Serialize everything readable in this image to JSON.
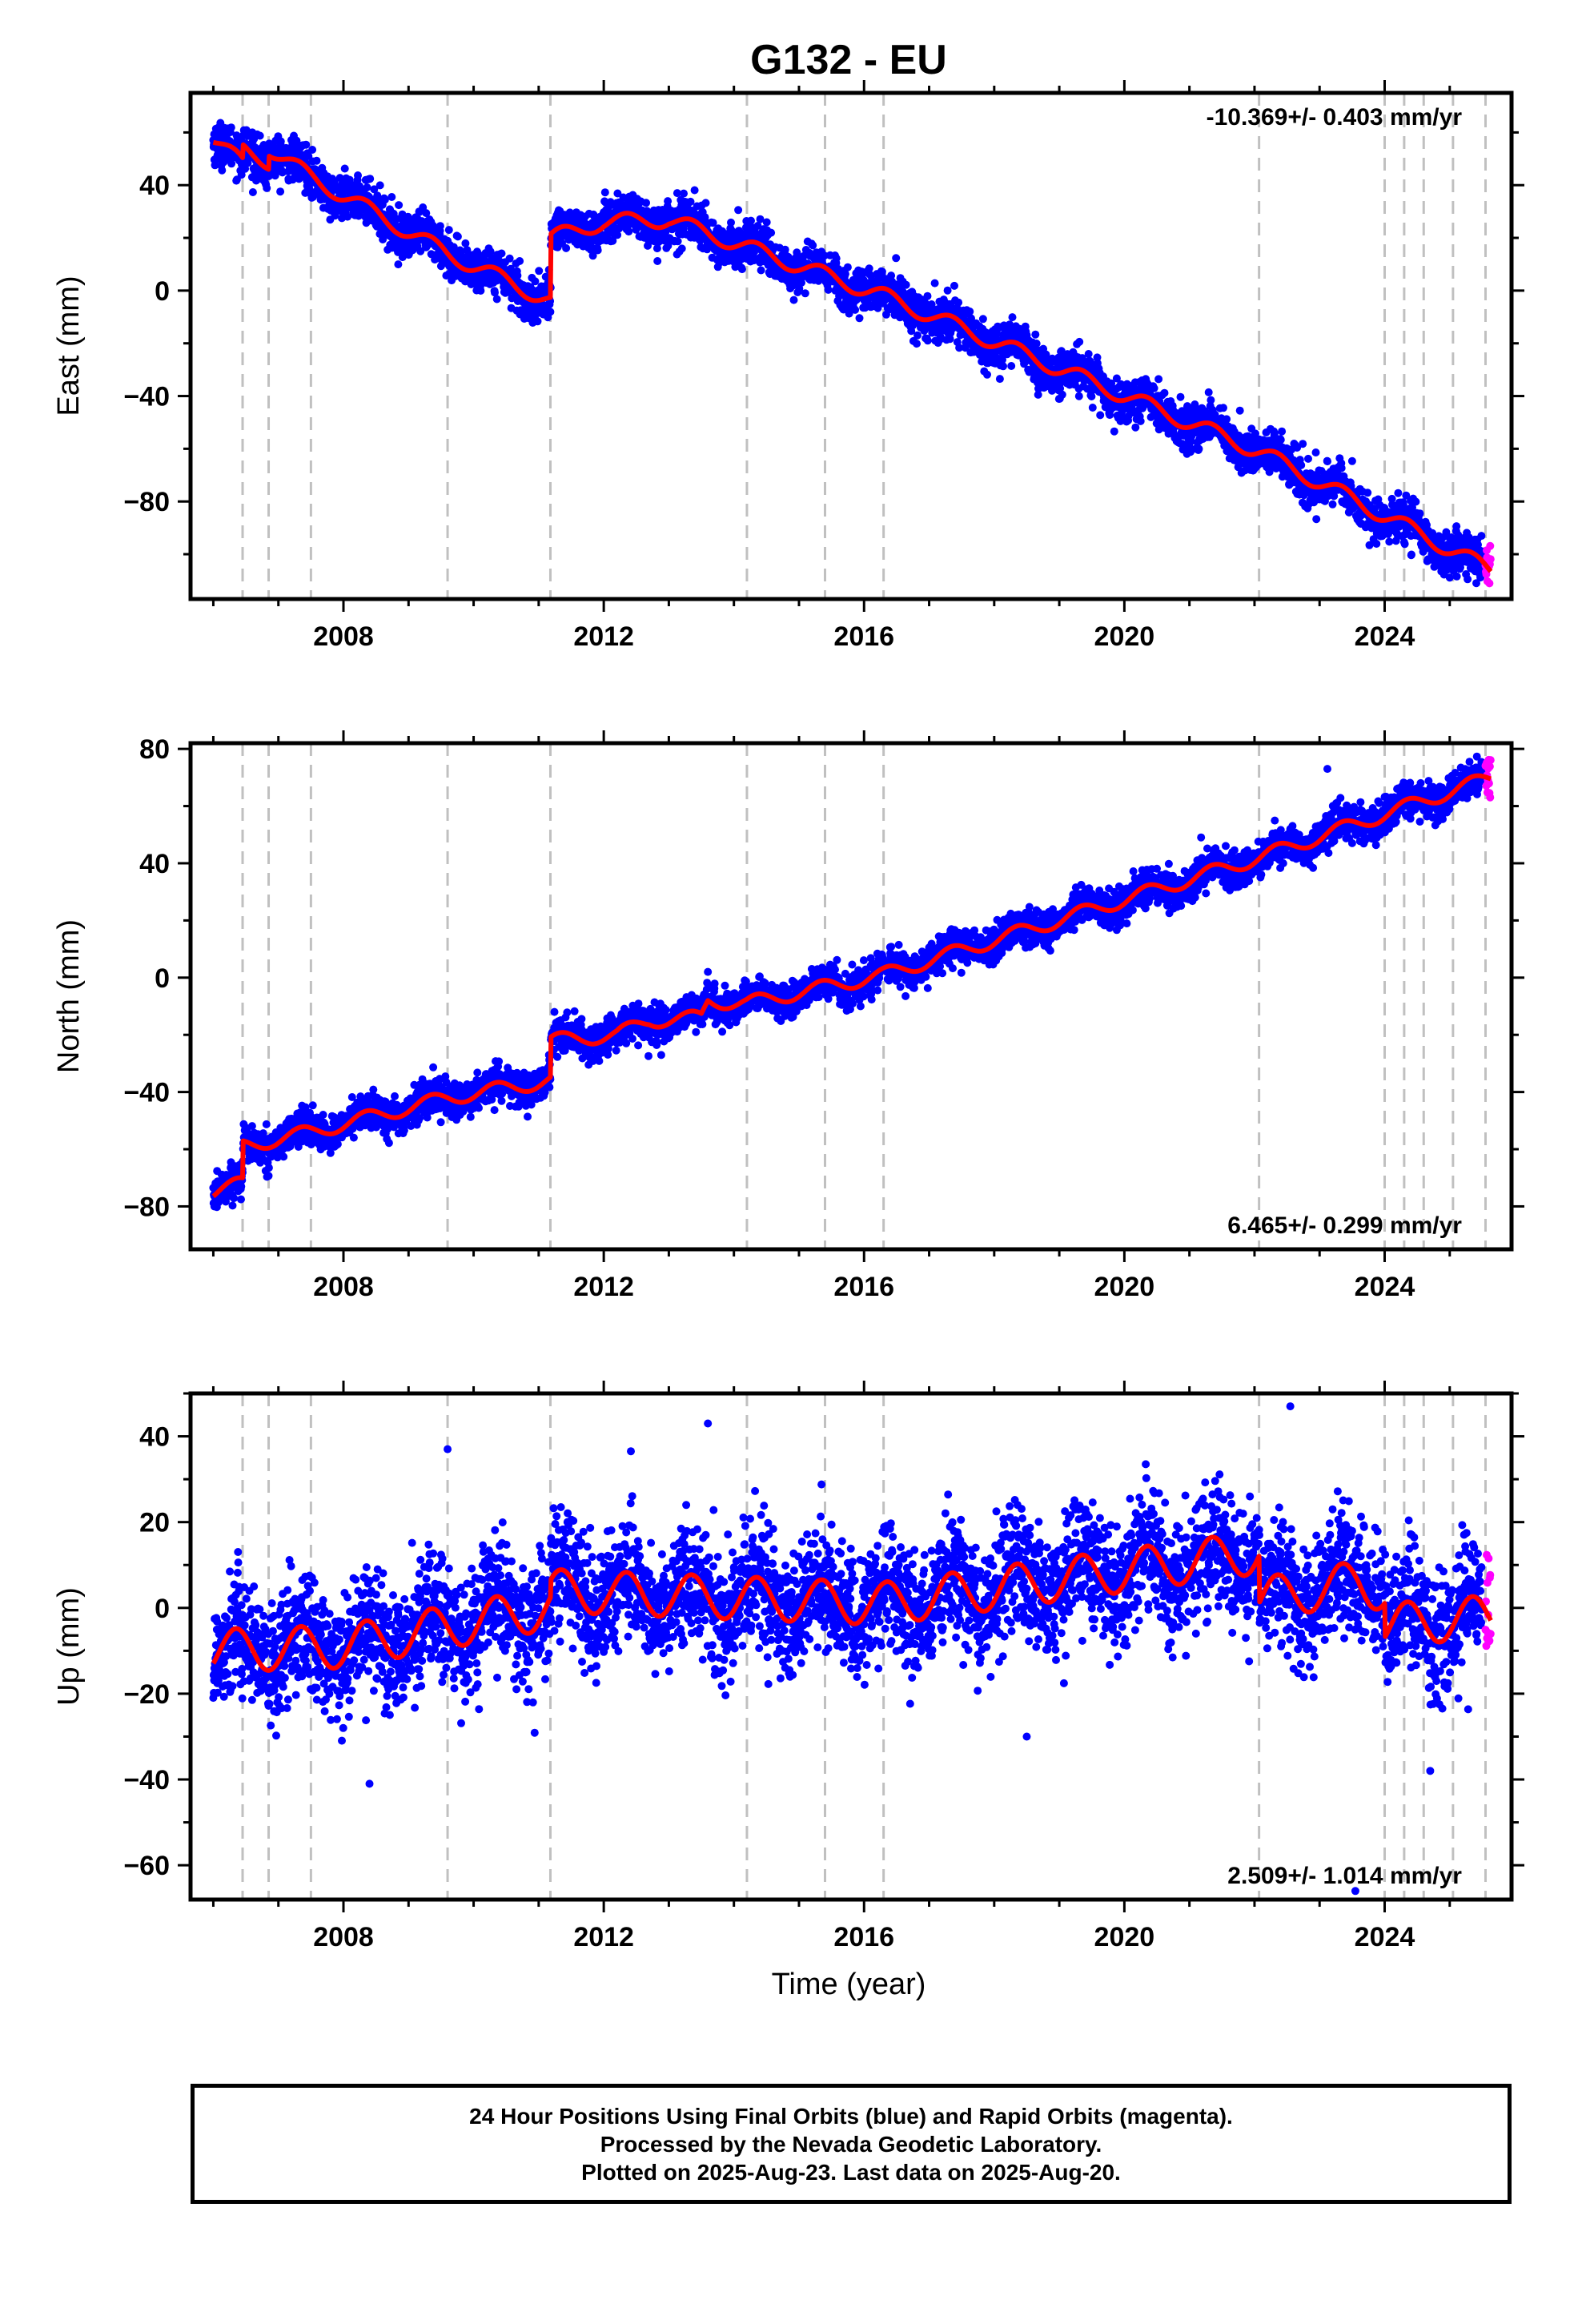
{
  "figure": {
    "title": "G132 - EU",
    "xlabel": "Time (year)",
    "footer_lines": [
      "24 Hour Positions Using Final Orbits (blue) and Rapid Orbits (magenta).",
      "Processed by the Nevada Geodetic Laboratory.",
      "Plotted on 2025-Aug-23. Last data on 2025-Aug-20."
    ]
  },
  "chart_data": [
    {
      "type": "scatter",
      "ylabel": "East (mm)",
      "rate_label": "-10.369+/- 0.403 mm/yr",
      "rate_position": "top-right",
      "xlim": [
        2005.65,
        2025.95
      ],
      "ylim": [
        -117,
        75
      ],
      "xticks": [
        2008,
        2012,
        2016,
        2020,
        2024
      ],
      "yticks": [
        -80,
        -40,
        0,
        40
      ],
      "colors": {
        "final": "#0000ff",
        "rapid": "#ff00ff",
        "model": "#ff0000",
        "events": "#c0c0c0"
      },
      "event_lines": [
        2006.45,
        2006.85,
        2007.5,
        2009.6,
        2011.18,
        2014.2,
        2015.4,
        2016.3,
        2022.07,
        2024.0,
        2024.3,
        2024.6,
        2025.05,
        2025.55
      ],
      "final_start": 2006.0,
      "final_end": 2025.5,
      "rapid_start": 2025.55,
      "rapid_end": 2025.63,
      "scatter_sd": 4.0,
      "outliers": [],
      "model_knots": [
        [
          2006.0,
          58
        ],
        [
          2006.45,
          48
        ],
        [
          2006.46,
          53
        ],
        [
          2006.85,
          49
        ],
        [
          2006.86,
          54
        ],
        [
          2007.5,
          43
        ],
        [
          2009.6,
          14
        ],
        [
          2011.18,
          -4
        ],
        [
          2011.19,
          20
        ],
        [
          2012.0,
          26
        ],
        [
          2013.0,
          27
        ],
        [
          2016.3,
          -2
        ],
        [
          2022.07,
          -61
        ],
        [
          2025.63,
          -106
        ]
      ],
      "seasonal_amp": 3.0
    },
    {
      "type": "scatter",
      "ylabel": "North (mm)",
      "rate_label": "6.465+/- 0.299 mm/yr",
      "rate_position": "bottom-right",
      "xlim": [
        2005.65,
        2025.95
      ],
      "ylim": [
        -95,
        82
      ],
      "xticks": [
        2008,
        2012,
        2016,
        2020,
        2024
      ],
      "yticks": [
        -80,
        -40,
        0,
        40,
        80
      ],
      "colors": {
        "final": "#0000ff",
        "rapid": "#ff00ff",
        "model": "#ff0000",
        "events": "#c0c0c0"
      },
      "event_lines": [
        2006.45,
        2006.85,
        2007.5,
        2009.6,
        2011.18,
        2014.2,
        2015.4,
        2016.3,
        2022.07,
        2024.0,
        2024.3,
        2024.6,
        2025.05,
        2025.55
      ],
      "final_start": 2006.0,
      "final_end": 2025.5,
      "rapid_start": 2025.55,
      "rapid_end": 2025.63,
      "scatter_sd": 3.0,
      "outliers": [
        [
          2023.12,
          73
        ],
        [
          2013.6,
          2
        ]
      ],
      "model_knots": [
        [
          2006.0,
          -75
        ],
        [
          2006.45,
          -72
        ],
        [
          2006.46,
          -59
        ],
        [
          2007.5,
          -54
        ],
        [
          2009.6,
          -42
        ],
        [
          2011.18,
          -36
        ],
        [
          2011.19,
          -22
        ],
        [
          2012.2,
          -20
        ],
        [
          2012.7,
          -15
        ],
        [
          2013.5,
          -14
        ],
        [
          2013.6,
          -8
        ],
        [
          2014.2,
          -9
        ],
        [
          2016.3,
          1
        ],
        [
          2022.07,
          42
        ],
        [
          2025.63,
          70
        ]
      ],
      "seasonal_amp": 2.5
    },
    {
      "type": "scatter",
      "ylabel": "Up (mm)",
      "rate_label": "2.509+/- 1.014 mm/yr",
      "rate_position": "bottom-right",
      "xlim": [
        2005.65,
        2025.95
      ],
      "ylim": [
        -68,
        50
      ],
      "xticks": [
        2008,
        2012,
        2016,
        2020,
        2024
      ],
      "yticks": [
        -60,
        -40,
        -20,
        0,
        20,
        40
      ],
      "colors": {
        "final": "#0000ff",
        "rapid": "#ff00ff",
        "model": "#ff0000",
        "events": "#c0c0c0"
      },
      "event_lines": [
        2006.45,
        2006.85,
        2007.5,
        2009.6,
        2011.18,
        2014.2,
        2015.4,
        2016.3,
        2022.07,
        2024.0,
        2024.3,
        2024.6,
        2025.05,
        2025.55
      ],
      "final_start": 2006.0,
      "final_end": 2025.5,
      "rapid_start": 2025.55,
      "rapid_end": 2025.63,
      "scatter_sd": 7.0,
      "outliers": [
        [
          2008.4,
          -41
        ],
        [
          2009.6,
          37
        ],
        [
          2013.6,
          43
        ],
        [
          2018.5,
          -30
        ],
        [
          2022.55,
          47
        ],
        [
          2024.7,
          -38
        ],
        [
          2023.55,
          -66
        ]
      ],
      "model_knots": [
        [
          2006.0,
          -10
        ],
        [
          2008.0,
          -9
        ],
        [
          2011.18,
          0
        ],
        [
          2011.19,
          4
        ],
        [
          2016.3,
          1
        ],
        [
          2022.07,
          13
        ],
        [
          2022.08,
          2
        ],
        [
          2023.6,
          6
        ],
        [
          2024.0,
          4
        ],
        [
          2024.01,
          -4
        ],
        [
          2025.63,
          -2
        ]
      ],
      "seasonal_amp": 5.0
    }
  ]
}
